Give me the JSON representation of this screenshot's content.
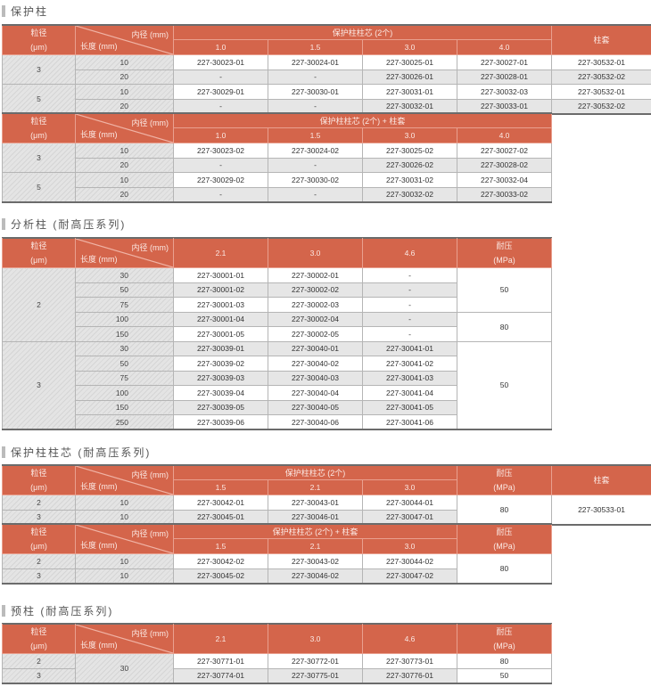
{
  "colors": {
    "header": "#d4654b",
    "row_alt": "#e6e6e6",
    "border": "#6b6b6b"
  },
  "sections": [
    {
      "title": "保护柱",
      "tables": [
        {
          "particle_label": [
            "粒径",
            "(μm)"
          ],
          "id_label": "内径 (mm)",
          "len_label": "长度 (mm)",
          "group": "保护柱柱芯 (2个)",
          "cols": [
            "1.0",
            "1.5",
            "3.0",
            "4.0"
          ],
          "extras": [
            {
              "label": "柱套"
            }
          ],
          "rows": [
            {
              "p": "3",
              "l": "10",
              "c": [
                "227-30023-01",
                "227-30024-01",
                "227-30025-01",
                "227-30027-01"
              ],
              "e": [
                "227-30532-01"
              ]
            },
            {
              "p": null,
              "l": "20",
              "c": [
                "-",
                "-",
                "227-30026-01",
                "227-30028-01"
              ],
              "e": [
                "227-30532-02"
              ]
            },
            {
              "p": "5",
              "l": "10",
              "c": [
                "227-30029-01",
                "227-30030-01",
                "227-30031-01",
                "227-30032-03"
              ],
              "e": [
                "227-30532-01"
              ]
            },
            {
              "p": null,
              "l": "20",
              "c": [
                "-",
                "-",
                "227-30032-01",
                "227-30033-01"
              ],
              "e": [
                "227-30532-02"
              ]
            }
          ]
        },
        {
          "particle_label": [
            "粒径",
            "(μm)"
          ],
          "id_label": "内径 (mm)",
          "len_label": "长度 (mm)",
          "group": "保护柱柱芯 (2个) + 柱套",
          "cols": [
            "1.0",
            "1.5",
            "3.0",
            "4.0"
          ],
          "extras": [],
          "rows": [
            {
              "p": "3",
              "l": "10",
              "c": [
                "227-30023-02",
                "227-30024-02",
                "227-30025-02",
                "227-30027-02"
              ],
              "e": []
            },
            {
              "p": null,
              "l": "20",
              "c": [
                "-",
                "-",
                "227-30026-02",
                "227-30028-02"
              ],
              "e": []
            },
            {
              "p": "5",
              "l": "10",
              "c": [
                "227-30029-02",
                "227-30030-02",
                "227-30031-02",
                "227-30032-04"
              ],
              "e": []
            },
            {
              "p": null,
              "l": "20",
              "c": [
                "-",
                "-",
                "227-30032-02",
                "227-30033-02"
              ],
              "e": []
            }
          ]
        }
      ]
    },
    {
      "title": "分析柱 (耐高压系列)",
      "tables": [
        {
          "particle_label": [
            "粒径",
            "(μm)"
          ],
          "id_label": "内径 (mm)",
          "len_label": "长度 (mm)",
          "group": null,
          "cols": [
            "2.1",
            "3.0",
            "4.6"
          ],
          "extras": [
            {
              "label": "耐压",
              "sub": "(MPa)"
            }
          ],
          "rows": [
            {
              "p": "2",
              "l": "30",
              "c": [
                "227-30001-01",
                "227-30002-01",
                "-"
              ],
              "e": [
                "50"
              ]
            },
            {
              "p": null,
              "l": "50",
              "c": [
                "227-30001-02",
                "227-30002-02",
                "-"
              ],
              "e": [
                null
              ]
            },
            {
              "p": null,
              "l": "75",
              "c": [
                "227-30001-03",
                "227-30002-03",
                "-"
              ],
              "e": [
                null
              ]
            },
            {
              "p": null,
              "l": "100",
              "c": [
                "227-30001-04",
                "227-30002-04",
                "-"
              ],
              "e": [
                "80"
              ]
            },
            {
              "p": null,
              "l": "150",
              "c": [
                "227-30001-05",
                "227-30002-05",
                "-"
              ],
              "e": [
                null
              ]
            },
            {
              "p": "3",
              "l": "30",
              "c": [
                "227-30039-01",
                "227-30040-01",
                "227-30041-01"
              ],
              "e": [
                "50"
              ]
            },
            {
              "p": null,
              "l": "50",
              "c": [
                "227-30039-02",
                "227-30040-02",
                "227-30041-02"
              ],
              "e": [
                null
              ]
            },
            {
              "p": null,
              "l": "75",
              "c": [
                "227-30039-03",
                "227-30040-03",
                "227-30041-03"
              ],
              "e": [
                null
              ]
            },
            {
              "p": null,
              "l": "100",
              "c": [
                "227-30039-04",
                "227-30040-04",
                "227-30041-04"
              ],
              "e": [
                null
              ]
            },
            {
              "p": null,
              "l": "150",
              "c": [
                "227-30039-05",
                "227-30040-05",
                "227-30041-05"
              ],
              "e": [
                null
              ]
            },
            {
              "p": null,
              "l": "250",
              "c": [
                "227-30039-06",
                "227-30040-06",
                "227-30041-06"
              ],
              "e": [
                null
              ]
            }
          ]
        }
      ]
    },
    {
      "title": "保护柱柱芯 (耐高压系列)",
      "tables": [
        {
          "particle_label": [
            "粒径",
            "(μm)"
          ],
          "id_label": "内径 (mm)",
          "len_label": "长度 (mm)",
          "group": "保护柱柱芯 (2个)",
          "cols": [
            "1.5",
            "2.1",
            "3.0"
          ],
          "extras": [
            {
              "label": "耐压",
              "sub": "(MPa)"
            },
            {
              "label": "柱套"
            }
          ],
          "rows": [
            {
              "p": "2",
              "l": "10",
              "c": [
                "227-30042-01",
                "227-30043-01",
                "227-30044-01"
              ],
              "e": [
                "80",
                "227-30533-01"
              ]
            },
            {
              "p": "3",
              "l": "10",
              "c": [
                "227-30045-01",
                "227-30046-01",
                "227-30047-01"
              ],
              "e": [
                null,
                null
              ]
            }
          ]
        },
        {
          "particle_label": [
            "粒径",
            "(μm)"
          ],
          "id_label": "内径 (mm)",
          "len_label": "长度 (mm)",
          "group": "保护柱柱芯 (2个) + 柱套",
          "cols": [
            "1.5",
            "2.1",
            "3.0"
          ],
          "extras": [
            {
              "label": "耐压",
              "sub": "(MPa)"
            }
          ],
          "rows": [
            {
              "p": "2",
              "l": "10",
              "c": [
                "227-30042-02",
                "227-30043-02",
                "227-30044-02"
              ],
              "e": [
                "80"
              ]
            },
            {
              "p": "3",
              "l": "10",
              "c": [
                "227-30045-02",
                "227-30046-02",
                "227-30047-02"
              ],
              "e": [
                null
              ]
            }
          ]
        }
      ]
    },
    {
      "title": "预柱 (耐高压系列)",
      "tables": [
        {
          "particle_label": [
            "粒径",
            "(μm)"
          ],
          "id_label": "内径 (mm)",
          "len_label": "长度 (mm)",
          "group": null,
          "cols": [
            "2.1",
            "3.0",
            "4.6"
          ],
          "extras": [
            {
              "label": "耐压",
              "sub": "(MPa)"
            }
          ],
          "rows": [
            {
              "p": "2",
              "l": "30",
              "c": [
                "227-30771-01",
                "227-30772-01",
                "227-30773-01"
              ],
              "e": [
                "80"
              ]
            },
            {
              "p": "3",
              "l": null,
              "c": [
                "227-30774-01",
                "227-30775-01",
                "227-30776-01"
              ],
              "e": [
                "50"
              ]
            }
          ]
        }
      ]
    }
  ]
}
